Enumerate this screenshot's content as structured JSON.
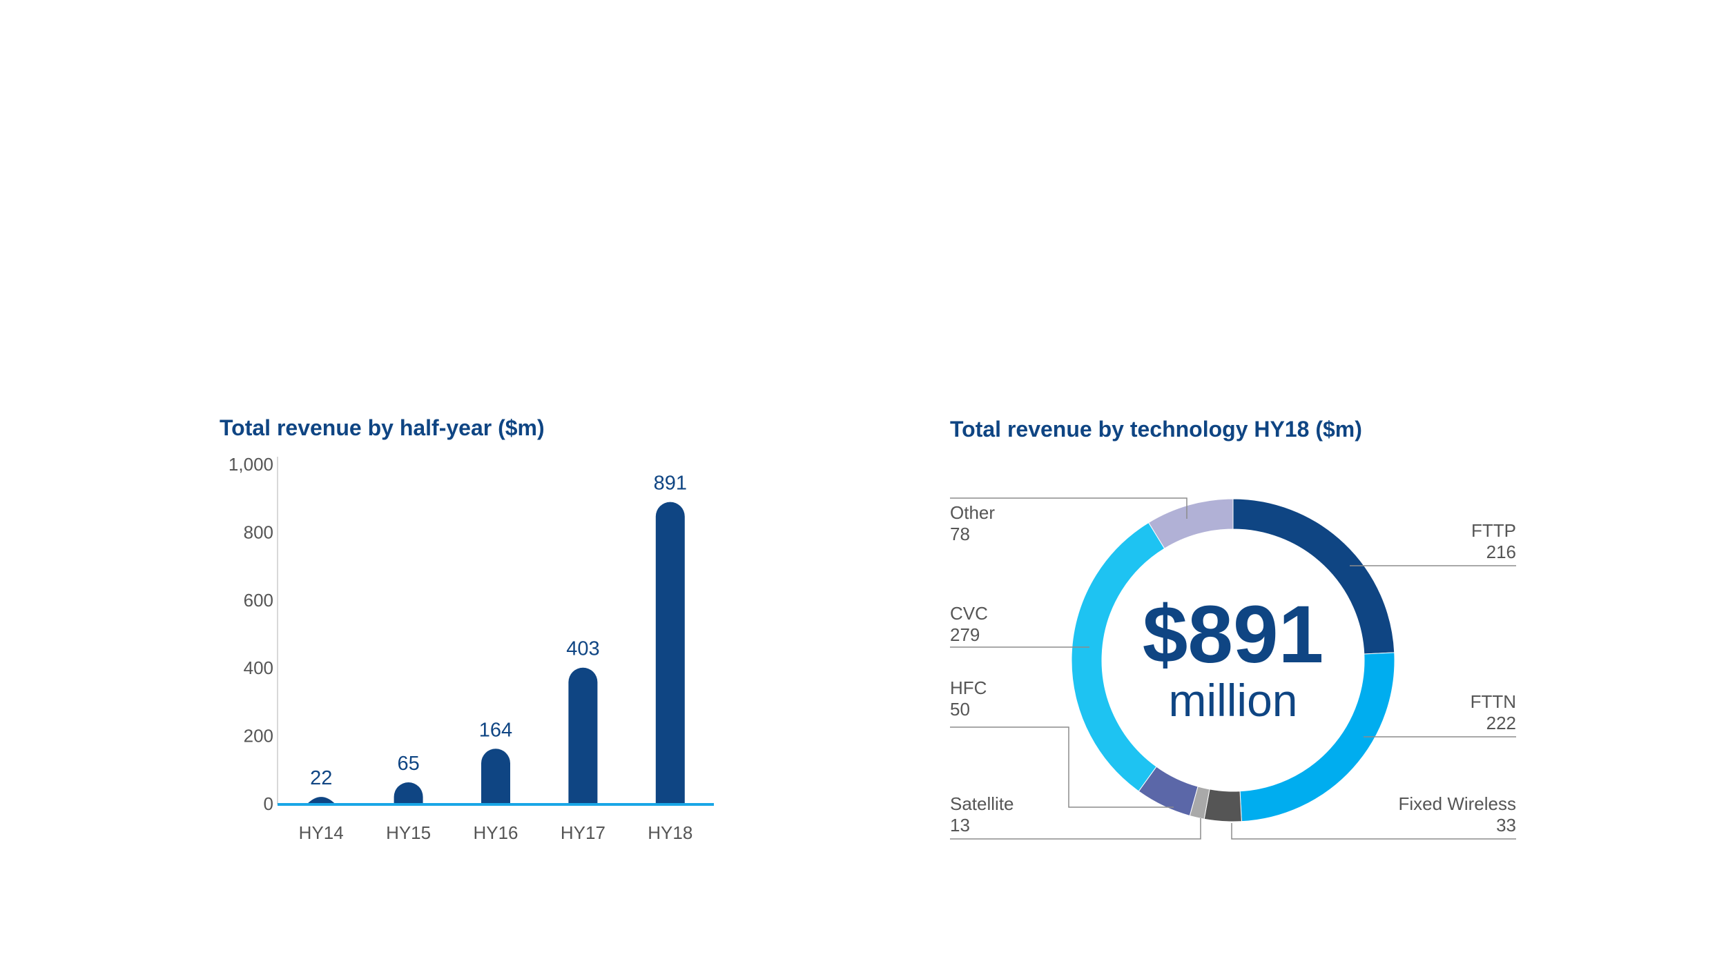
{
  "chart_data": [
    {
      "type": "bar",
      "title": "Total revenue by half-year ($m)",
      "xlabel": "",
      "ylabel": "",
      "ylim": [
        0,
        1000
      ],
      "yticks": [
        "1,000",
        "800",
        "600",
        "400",
        "200",
        "0"
      ],
      "ytick_values": [
        1000,
        800,
        600,
        400,
        200,
        0
      ],
      "categories": [
        "HY14",
        "HY15",
        "HY16",
        "HY17",
        "HY18"
      ],
      "values": [
        22,
        65,
        164,
        403,
        891
      ],
      "value_labels": [
        "22",
        "65",
        "164",
        "403",
        "891"
      ],
      "grid": false,
      "colors": {
        "bar": "#0f4583",
        "axis": "#19a6e6",
        "text": "#555555",
        "label": "#0f4583"
      }
    },
    {
      "type": "pie",
      "title": "Total revenue by technology HY18 ($m)",
      "center_total": "$891",
      "center_unit": "million",
      "slices": [
        {
          "label": "FTTP",
          "value": 216,
          "value_label": "216",
          "color": "#0f4583"
        },
        {
          "label": "FTTN",
          "value": 222,
          "value_label": "222",
          "color": "#00adef"
        },
        {
          "label": "Fixed Wireless",
          "value": 33,
          "value_label": "33",
          "color": "#555555"
        },
        {
          "label": "Satellite",
          "value": 13,
          "value_label": "13",
          "color": "#a9a9a9"
        },
        {
          "label": "HFC",
          "value": 50,
          "value_label": "50",
          "color": "#5b67a8"
        },
        {
          "label": "CVC",
          "value": 279,
          "value_label": "279",
          "color": "#1ec3f2"
        },
        {
          "label": "Other",
          "value": 78,
          "value_label": "78",
          "color": "#b1b1d6"
        }
      ]
    }
  ]
}
